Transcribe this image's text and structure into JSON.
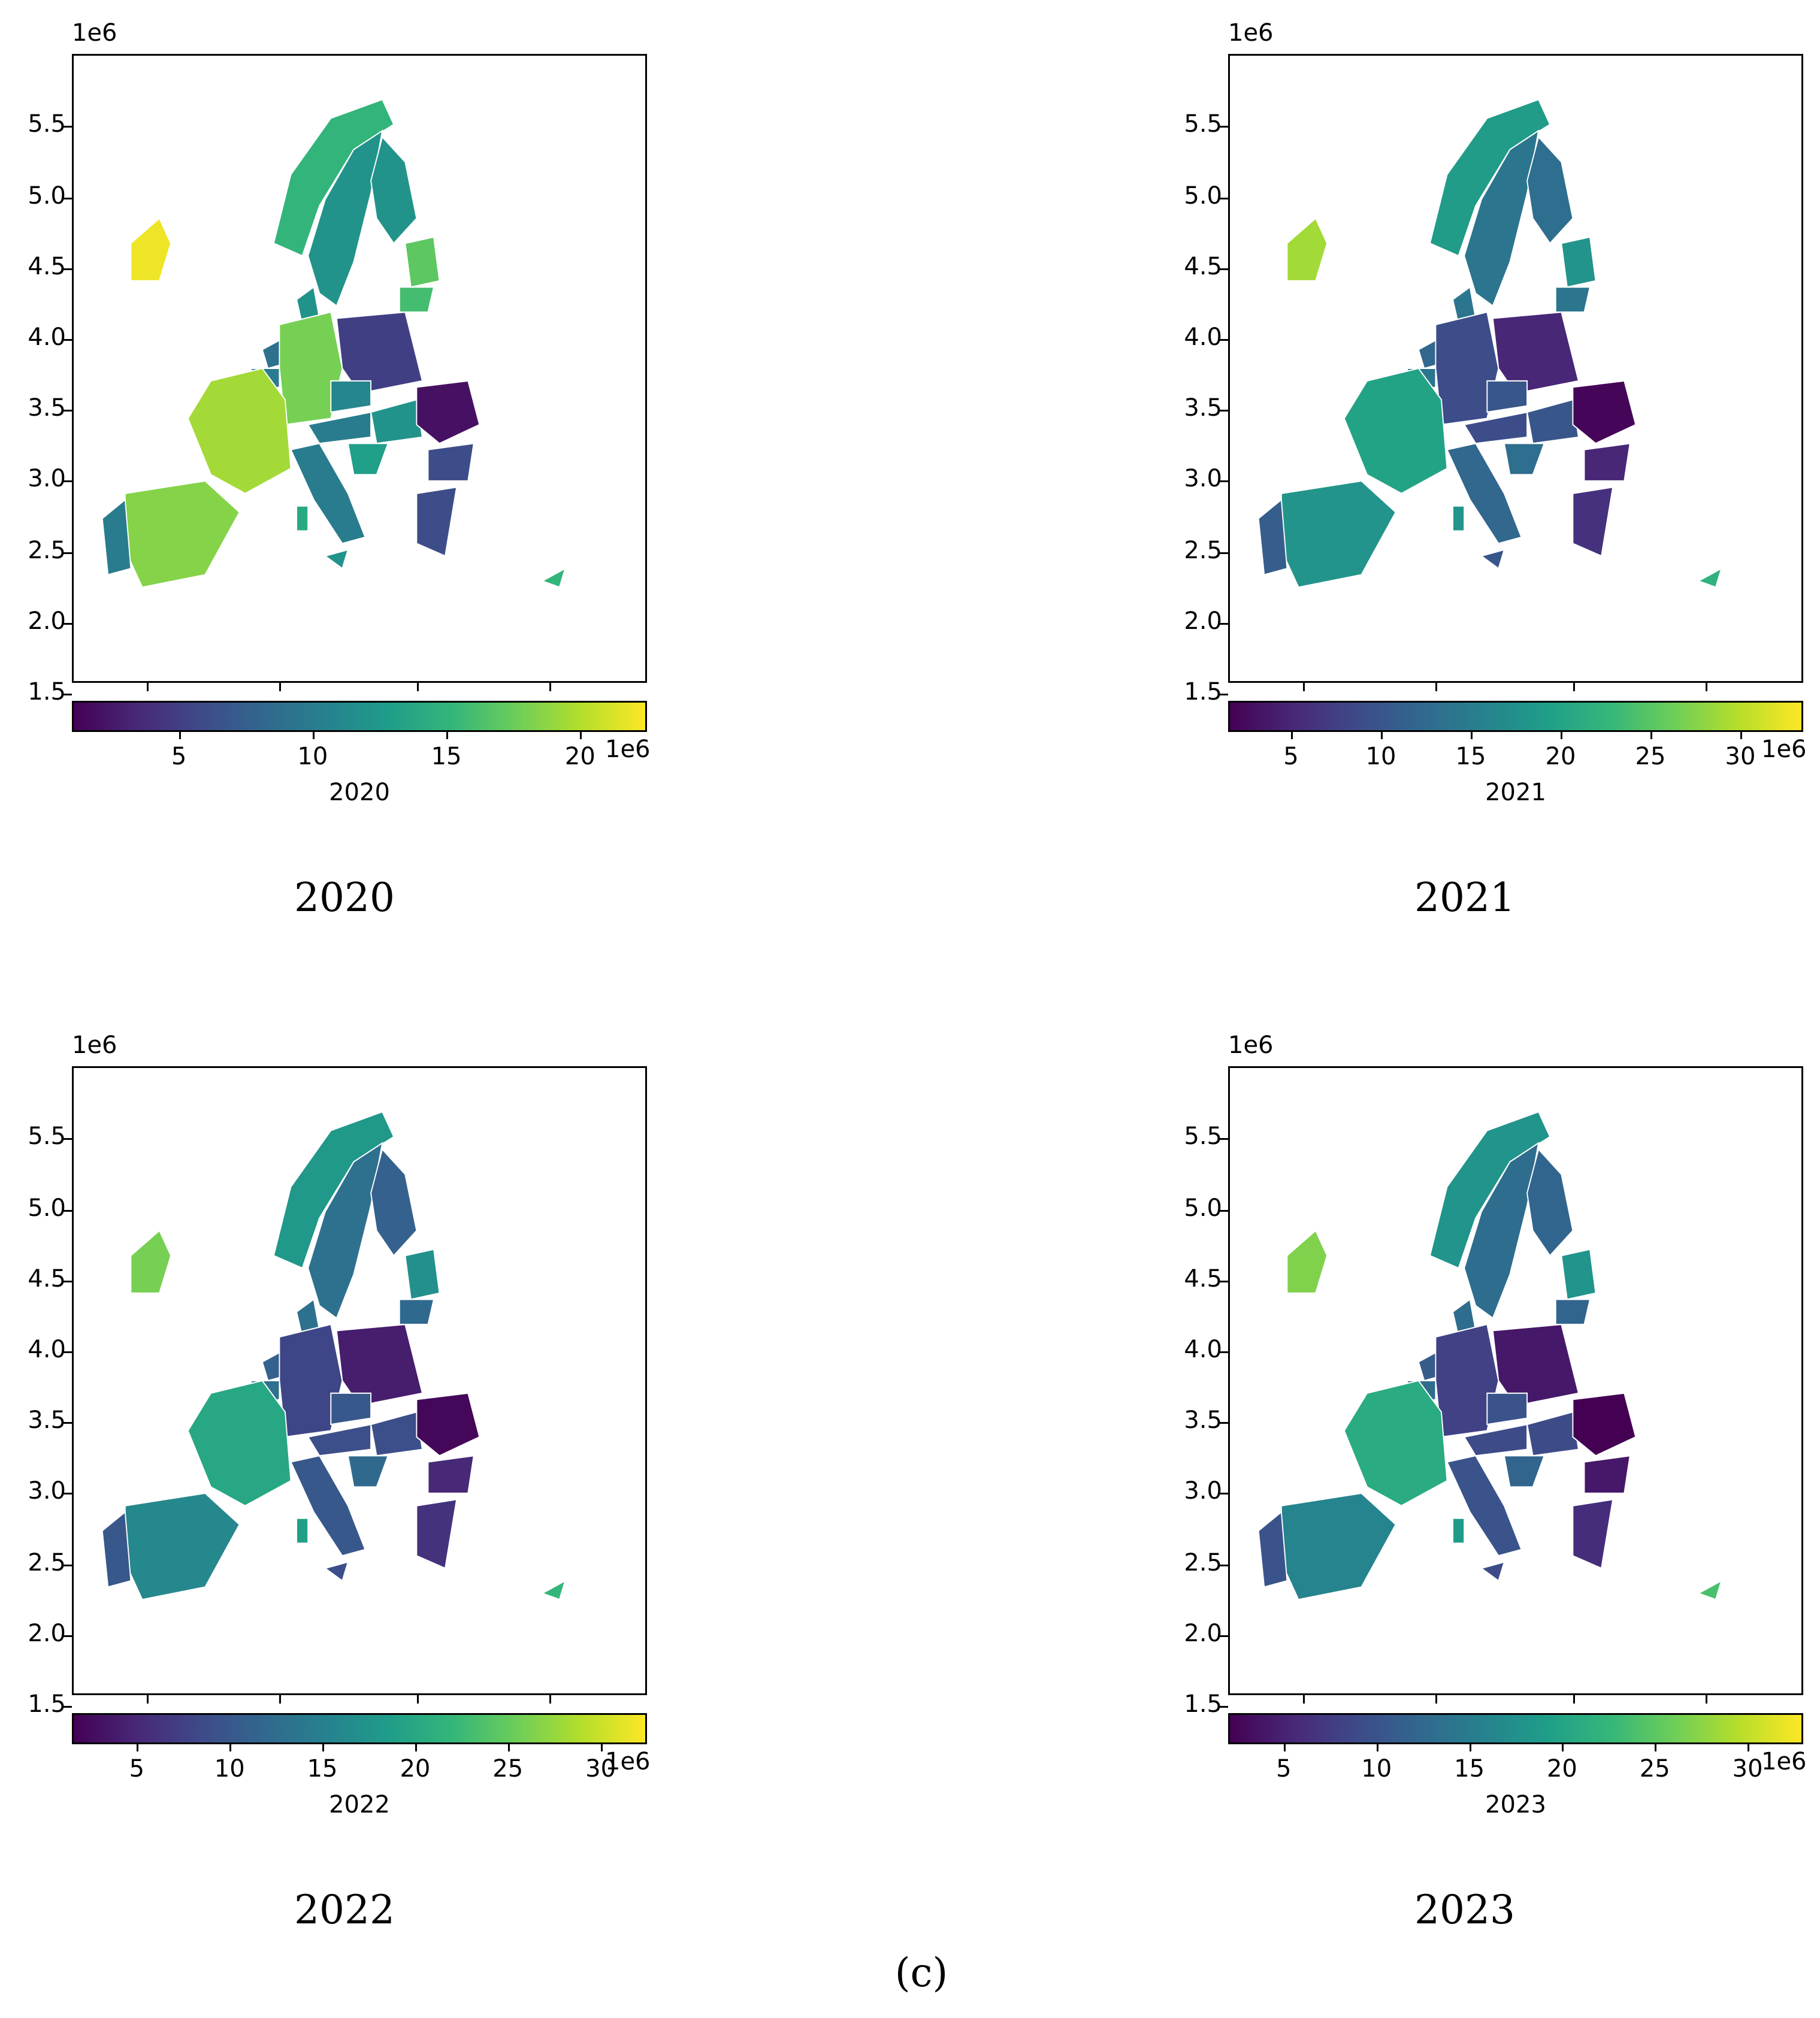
{
  "panels": [
    {
      "id": "p2020",
      "axis_exponent": "1e6",
      "y_ticks": [
        "5.5",
        "5.0",
        "4.5",
        "4.0",
        "3.5",
        "3.0",
        "2.5",
        "2.0",
        "1.5"
      ],
      "colorbar": {
        "ticks": [
          "5",
          "10",
          "15",
          "20"
        ],
        "exponent": "1e6",
        "label": "2020",
        "range": [
          1,
          22.5
        ]
      },
      "caption": "2020",
      "values": {
        "ireland": 22,
        "france": 19.5,
        "spain": 18.5,
        "germany": 18,
        "baltics": 17,
        "lithuania": 16,
        "norway": 15,
        "sweden": 12,
        "finland": 12,
        "italy": 10,
        "portugal": 10,
        "poland": 5,
        "romania": 2,
        "greece": 6,
        "bulgaria": 6,
        "austria": 10,
        "czech": 11,
        "hungary": 12,
        "croatia": 13,
        "netherlands": 9,
        "belgium": 10,
        "denmark": 12,
        "cyprus": 15,
        "sardinia": 14,
        "sicily": 12
      }
    },
    {
      "id": "p2021",
      "axis_exponent": "1e6",
      "y_ticks": [
        "5.5",
        "5.0",
        "4.5",
        "4.0",
        "3.5",
        "3.0",
        "2.5",
        "2.0",
        "1.5"
      ],
      "colorbar": {
        "ticks": [
          "5",
          "10",
          "15",
          "20",
          "25",
          "30"
        ],
        "exponent": "1e6",
        "label": "2021",
        "range": [
          1.5,
          33.5
        ]
      },
      "caption": "2021",
      "values": {
        "ireland": 29,
        "france": 20,
        "spain": 18,
        "germany": 9,
        "baltics": 18,
        "lithuania": 14,
        "norway": 19,
        "sweden": 14,
        "finland": 13,
        "italy": 12,
        "portugal": 11,
        "poland": 5,
        "romania": 2,
        "greece": 6,
        "bulgaria": 5,
        "austria": 9,
        "czech": 10,
        "hungary": 10,
        "croatia": 13,
        "netherlands": 12,
        "belgium": 14,
        "denmark": 14,
        "cyprus": 22,
        "sardinia": 18,
        "sicily": 10
      }
    },
    {
      "id": "p2022",
      "axis_exponent": "1e6",
      "y_ticks": [
        "5.5",
        "5.0",
        "4.5",
        "4.0",
        "3.5",
        "3.0",
        "2.5",
        "2.0",
        "1.5"
      ],
      "colorbar": {
        "ticks": [
          "5",
          "10",
          "15",
          "20",
          "25",
          "30"
        ],
        "exponent": "1e6",
        "label": "2022",
        "range": [
          1.5,
          32.5
        ]
      },
      "caption": "2022",
      "values": {
        "ireland": 26,
        "france": 20,
        "spain": 16,
        "germany": 8,
        "baltics": 17,
        "lithuania": 12,
        "norway": 18,
        "sweden": 13,
        "finland": 11,
        "italy": 10,
        "portugal": 10,
        "poland": 4,
        "romania": 2,
        "greece": 6,
        "bulgaria": 5,
        "austria": 9,
        "czech": 10,
        "hungary": 9,
        "croatia": 12,
        "netherlands": 11,
        "belgium": 13,
        "denmark": 13,
        "cyprus": 22,
        "sardinia": 19,
        "sicily": 9
      }
    },
    {
      "id": "p2023",
      "axis_exponent": "1e6",
      "y_ticks": [
        "5.5",
        "5.0",
        "4.5",
        "4.0",
        "3.5",
        "3.0",
        "2.5",
        "2.0",
        "1.5"
      ],
      "colorbar": {
        "ticks": [
          "5",
          "10",
          "15",
          "20",
          "25",
          "30"
        ],
        "exponent": "1e6",
        "label": "2023",
        "range": [
          2,
          33
        ]
      },
      "caption": "2023",
      "values": {
        "ireland": 27,
        "france": 21,
        "spain": 16,
        "germany": 8,
        "baltics": 18,
        "lithuania": 12,
        "norway": 18,
        "sweden": 13,
        "finland": 12,
        "italy": 10,
        "portugal": 10,
        "poland": 4,
        "romania": 2,
        "greece": 6,
        "bulgaria": 4,
        "austria": 9,
        "czech": 10,
        "hungary": 9,
        "croatia": 12,
        "netherlands": 11,
        "belgium": 13,
        "denmark": 13,
        "cyprus": 24,
        "sardinia": 19,
        "sicily": 9
      }
    }
  ],
  "figure_label": "(c)",
  "colormap": "viridis"
}
